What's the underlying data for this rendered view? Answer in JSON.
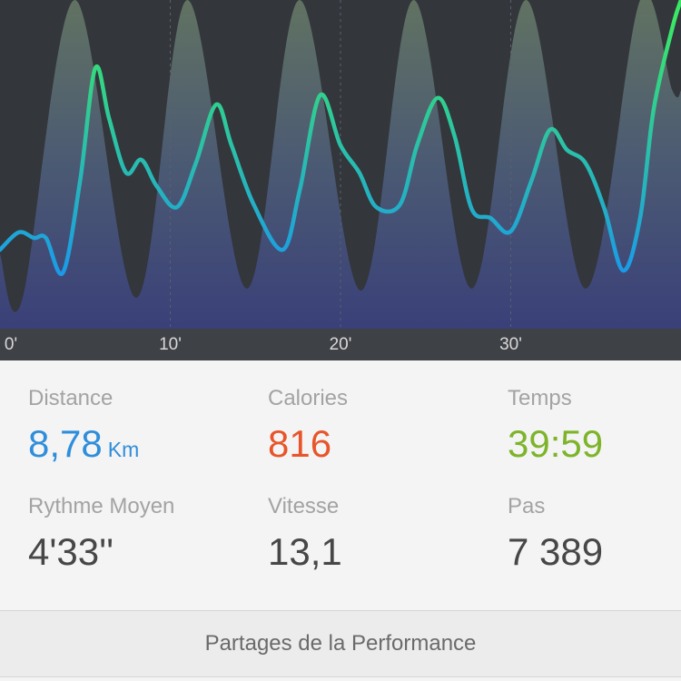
{
  "chart_data": {
    "type": "line",
    "xlim": [
      0,
      40
    ],
    "ylim": [
      0,
      100
    ],
    "xticks": [
      {
        "value": 0,
        "label": "0'"
      },
      {
        "value": 10,
        "label": "10'"
      },
      {
        "value": 20,
        "label": "20'"
      },
      {
        "value": 30,
        "label": "30'"
      }
    ],
    "series": [
      {
        "color": "#33363b",
        "fill": true,
        "x": [
          0,
          1.3,
          4.4,
          8.0,
          11.0,
          14.5,
          17.6,
          21.2,
          24.3,
          27.7,
          30.9,
          34.4,
          37.6,
          39.5,
          40
        ],
        "values": [
          22.7,
          8.8,
          100,
          9.4,
          100,
          12.2,
          100,
          11.6,
          100,
          12.2,
          100,
          12.2,
          100,
          72.4,
          72.4
        ]
      },
      {
        "color": "#3be866",
        "color2": "#1b9ae8",
        "x": [
          0,
          1.1,
          2.0,
          2.7,
          3.7,
          4.7,
          5.6,
          6.4,
          7.4,
          8.3,
          9.2,
          10.4,
          11.5,
          12.7,
          13.6,
          14.9,
          16.6,
          17.6,
          18.8,
          20.0,
          21.1,
          22.1,
          23.5,
          24.5,
          25.7,
          26.7,
          27.7,
          28.8,
          30.0,
          31.2,
          32.3,
          33.3,
          34.4,
          35.5,
          36.6,
          37.6,
          38.4,
          39.5,
          40
        ],
        "values": [
          24.0,
          29.3,
          27.6,
          27.6,
          17.1,
          44.8,
          79.3,
          64.1,
          47.5,
          51.4,
          43.4,
          37.0,
          50.3,
          68.2,
          55.8,
          37.8,
          24.0,
          42.0,
          71.0,
          55.8,
          47.5,
          37.0,
          37.8,
          55.8,
          70.2,
          58.6,
          36.5,
          33.7,
          29.6,
          44.8,
          60.5,
          54.4,
          50.3,
          36.5,
          17.7,
          33.7,
          66.9,
          91.7,
          100
        ]
      }
    ]
  },
  "stats": [
    {
      "label": "Distance",
      "value": "8,78",
      "unit": "Km",
      "color": "#2f8edb"
    },
    {
      "label": "Calories",
      "value": "816",
      "color": "#e8552b"
    },
    {
      "label": "Temps",
      "value": "39:59",
      "color": "#7db42a"
    },
    {
      "label": "Rythme Moyen",
      "value": "4'33''",
      "color": "#474747"
    },
    {
      "label": "Vitesse",
      "value": "13,1",
      "color": "#474747"
    },
    {
      "label": "Pas",
      "value": "7 389",
      "color": "#474747"
    }
  ],
  "share_button": "Partages de la Performance"
}
